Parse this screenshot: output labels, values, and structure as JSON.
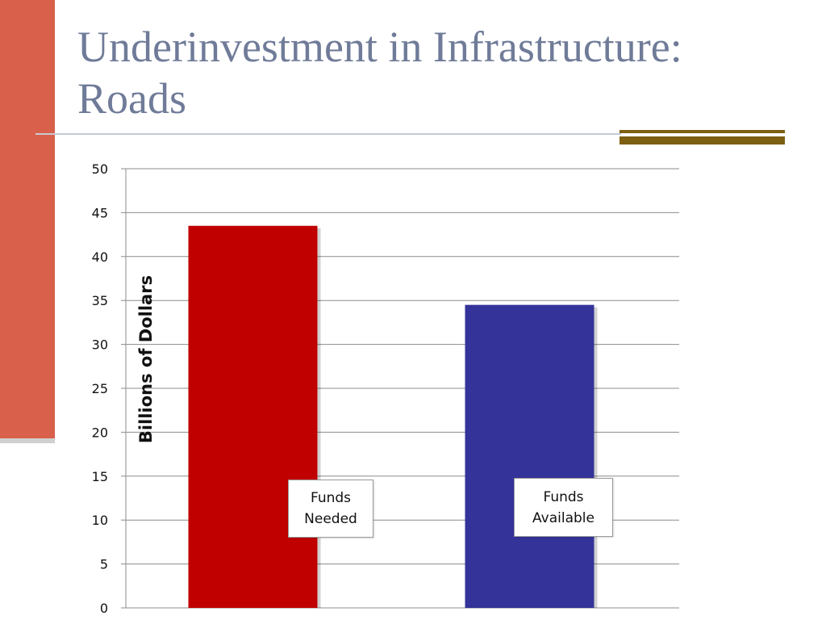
{
  "slide": {
    "title": "Underinvestment in Infrastructure: Roads"
  },
  "colors": {
    "sidebar": "#d9604a",
    "title": "#6f7b98",
    "accent_rule": "#7d5f12"
  },
  "chart_data": {
    "type": "bar",
    "categories": [
      "Funds Needed",
      "Funds Available"
    ],
    "values": [
      43.5,
      34.5
    ],
    "bar_colors": [
      "#c00000",
      "#333399"
    ],
    "bar_labels": [
      [
        "Funds",
        "Needed"
      ],
      [
        "Funds",
        "Available"
      ]
    ],
    "ylabel": "Billions of Dollars",
    "xlabel": "",
    "ylim": [
      0,
      50
    ],
    "yticks": [
      0,
      5,
      10,
      15,
      20,
      25,
      30,
      35,
      40,
      45,
      50
    ],
    "grid": true,
    "legend": "none"
  }
}
